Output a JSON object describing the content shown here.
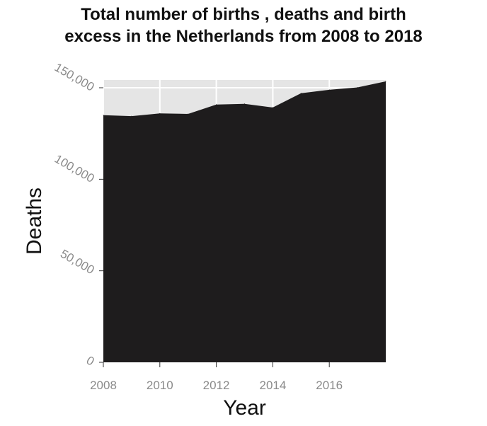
{
  "chart_data": {
    "type": "area",
    "title_line1": "Total number of births , deaths and birth",
    "title_line2": "excess in the Netherlands from 2008 to 2018",
    "xlabel": "Year",
    "ylabel": "Deaths",
    "x": [
      2008,
      2009,
      2010,
      2011,
      2012,
      2013,
      2014,
      2015,
      2016,
      2017,
      2018
    ],
    "series": [
      {
        "values": [
          135000,
          134500,
          136000,
          135700,
          140800,
          141200,
          139200,
          147000,
          148900,
          150200,
          153500
        ]
      }
    ],
    "xlim": [
      2008,
      2018
    ],
    "ylim": [
      0,
      150000
    ],
    "xticks": [
      "2008",
      "2010",
      "2012",
      "2014",
      "2016"
    ],
    "yticks": [
      "0",
      "50,000",
      "100,000",
      "150,000"
    ],
    "grid": true,
    "colors": {
      "fill": "#1e1c1d",
      "plot_bg": "#e5e5e5",
      "grid": "#ffffff",
      "tick_text": "#8a8a8a"
    }
  }
}
